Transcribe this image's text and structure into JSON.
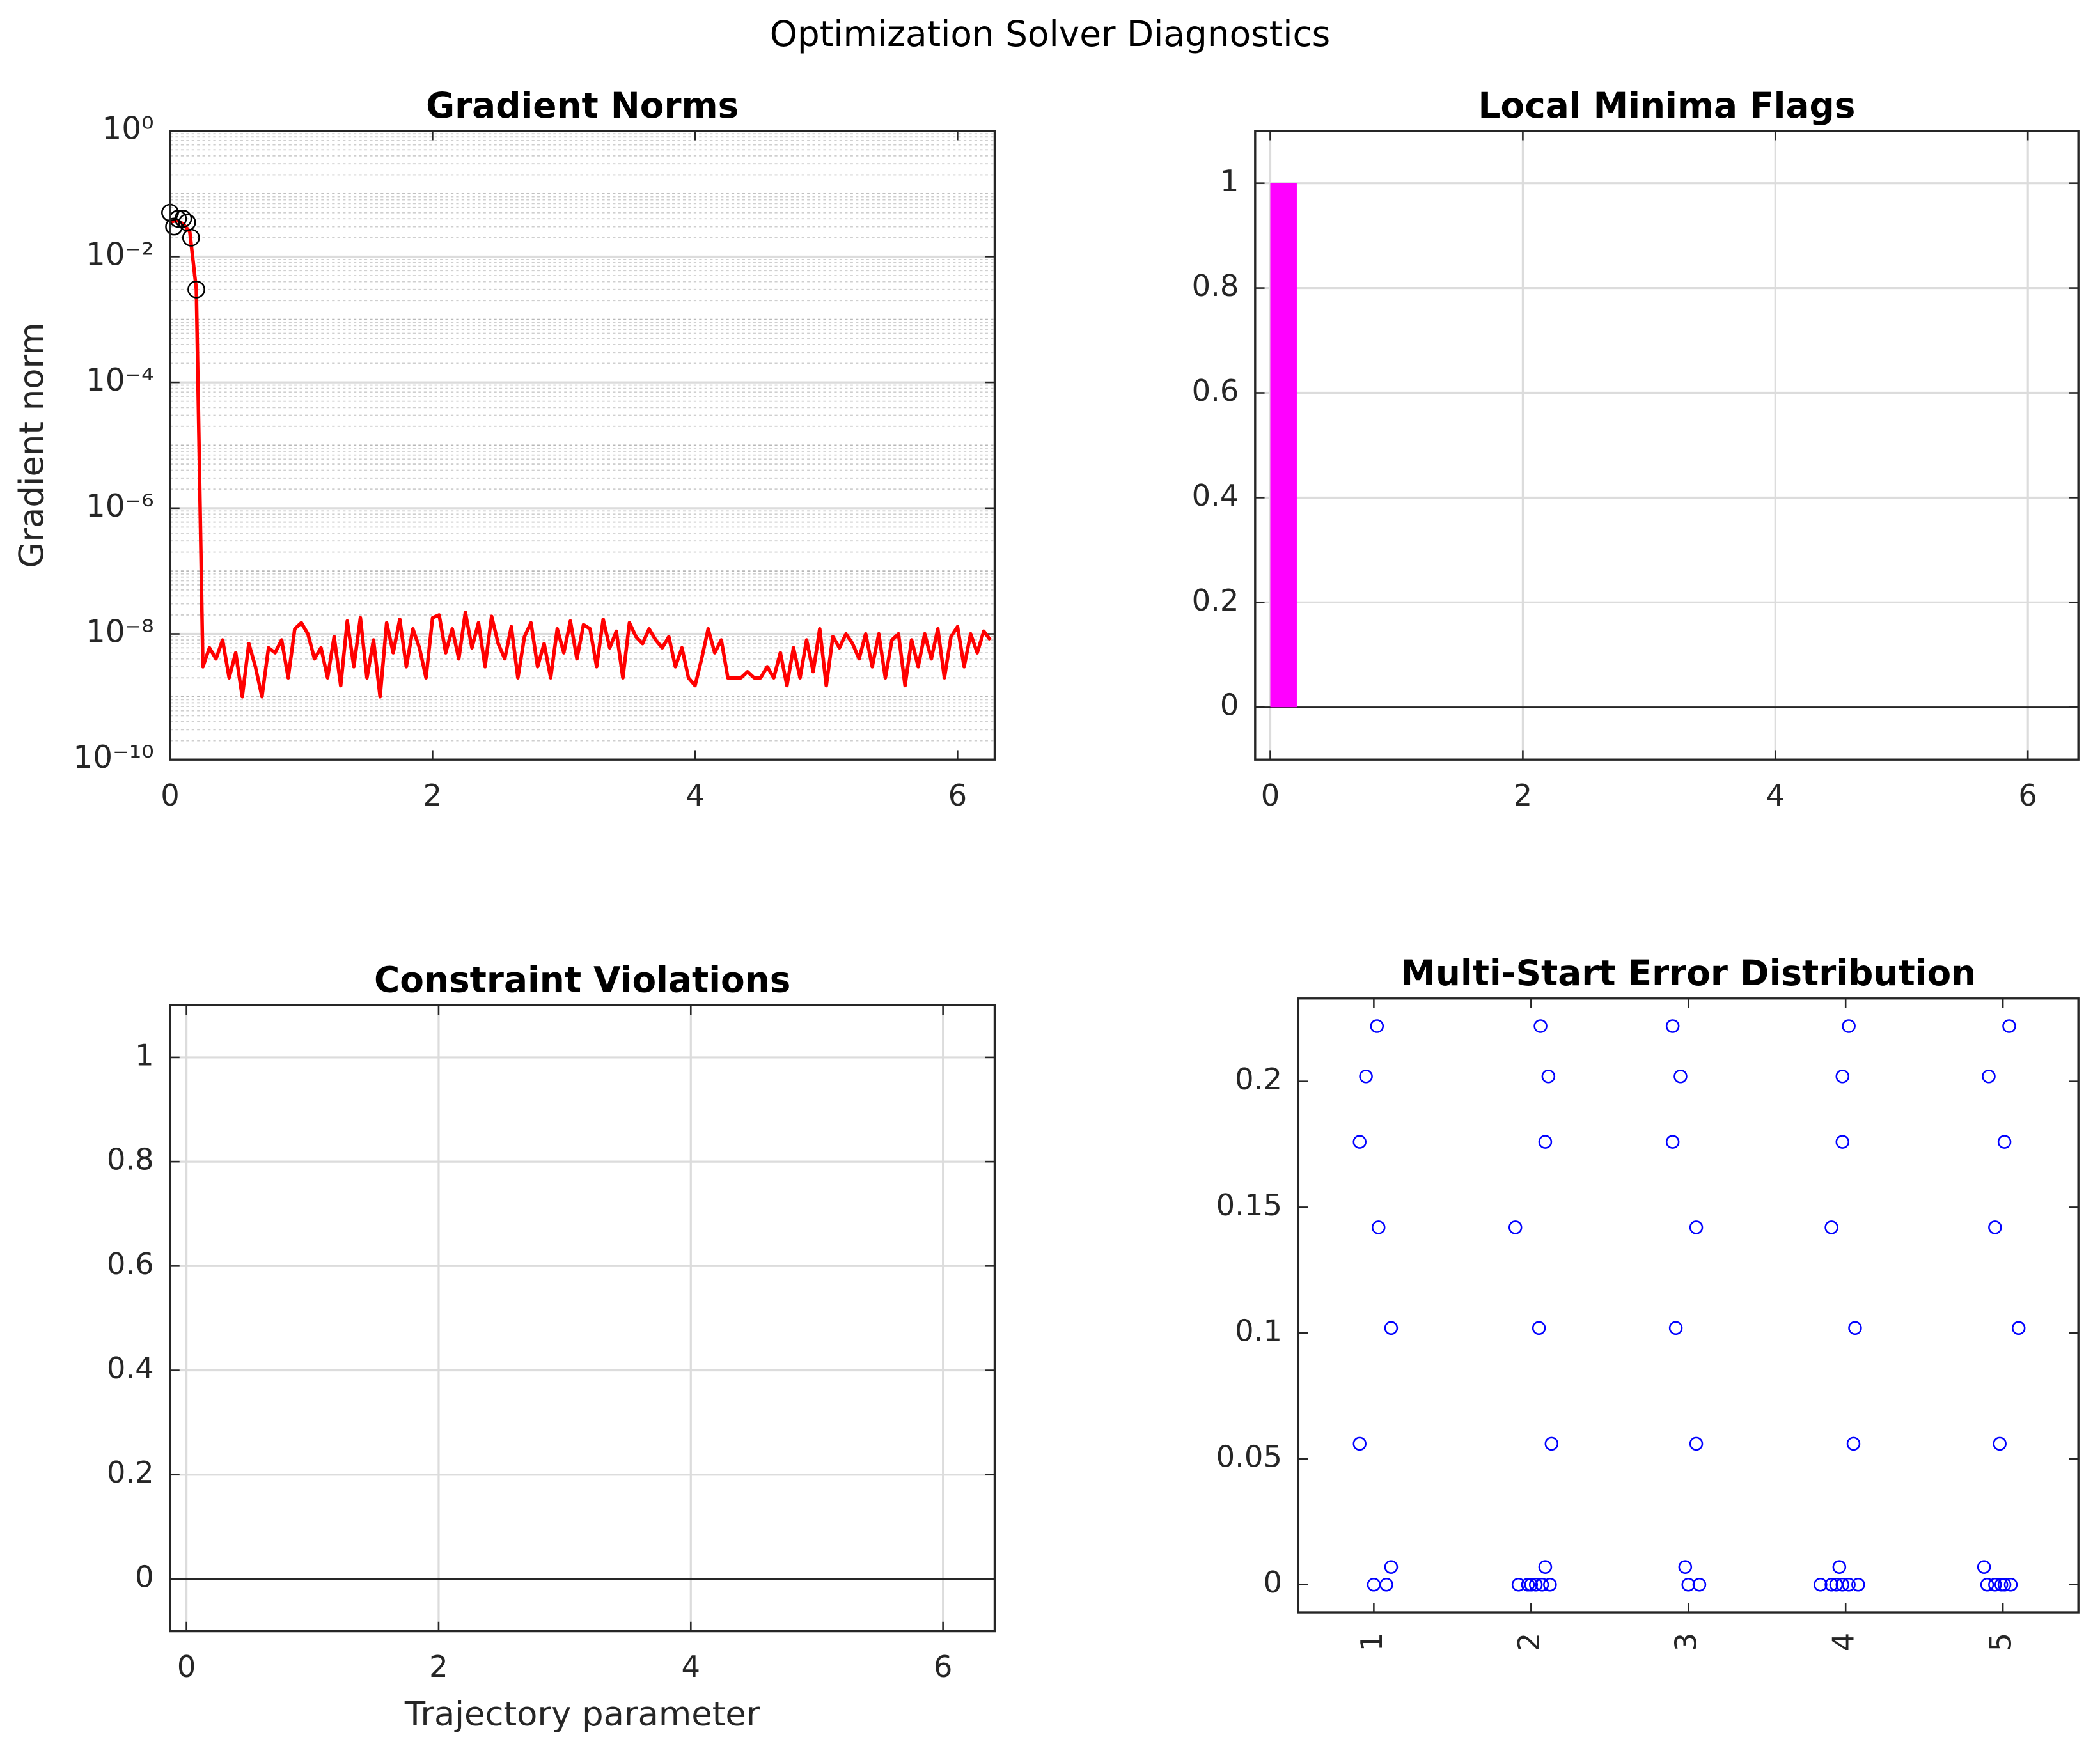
{
  "title": "Optimization Solver Diagnostics",
  "chart_data": [
    {
      "type": "line",
      "title": "Gradient Norms",
      "ylabel": "Gradient norm",
      "xlim": [
        0,
        6.283
      ],
      "xticks": [
        0,
        2,
        4,
        6
      ],
      "log_y": true,
      "ylim": [
        1e-10,
        1
      ],
      "yticks": [
        {
          "value": 1e-10,
          "label": "10⁻¹⁰"
        },
        {
          "value": 1e-08,
          "label": "10⁻⁸"
        },
        {
          "value": 1e-06,
          "label": "10⁻⁶"
        },
        {
          "value": 0.0001,
          "label": "10⁻⁴"
        },
        {
          "value": 0.01,
          "label": "10⁻²"
        },
        {
          "value": 1,
          "label": "10⁰"
        }
      ],
      "grid": "y",
      "minor_grid": true,
      "series": [
        {
          "color": "#ff0000",
          "style": "line",
          "x": [
            0,
            0.05,
            0.1,
            0.15,
            0.2,
            0.25,
            0.3,
            0.35,
            0.4,
            0.45,
            0.5,
            0.55,
            0.6,
            0.65,
            0.7,
            0.75,
            0.8,
            0.85,
            0.9,
            0.95,
            1,
            1.05,
            1.1,
            1.15,
            1.2,
            1.25,
            1.3,
            1.35,
            1.4,
            1.45,
            1.5,
            1.55,
            1.6,
            1.65,
            1.7,
            1.75,
            1.8,
            1.85,
            1.9,
            1.95,
            2,
            2.05,
            2.1,
            2.15,
            2.2,
            2.25,
            2.3,
            2.35,
            2.4,
            2.45,
            2.5,
            2.55,
            2.6,
            2.65,
            2.7,
            2.75,
            2.8,
            2.85,
            2.9,
            2.95,
            3,
            3.05,
            3.1,
            3.15,
            3.2,
            3.25,
            3.3,
            3.35,
            3.4,
            3.45,
            3.5,
            3.55,
            3.6,
            3.65,
            3.7,
            3.75,
            3.8,
            3.85,
            3.9,
            3.95,
            4,
            4.05,
            4.1,
            4.15,
            4.2,
            4.25,
            4.3,
            4.35,
            4.4,
            4.45,
            4.5,
            4.55,
            4.6,
            4.65,
            4.7,
            4.75,
            4.8,
            4.85,
            4.9,
            4.95,
            5,
            5.05,
            5.1,
            5.15,
            5.2,
            5.25,
            5.3,
            5.35,
            5.4,
            5.45,
            5.5,
            5.55,
            5.6,
            5.65,
            5.7,
            5.75,
            5.8,
            5.85,
            5.9,
            5.95,
            6,
            6.05,
            6.1,
            6.15,
            6.2,
            6.25
          ],
          "values": [
            0.035,
            0.038,
            0.033,
            0.025,
            0.003,
            3e-09,
            6e-09,
            4e-09,
            8e-09,
            2e-09,
            5e-09,
            1e-09,
            7e-09,
            3e-09,
            1e-09,
            6e-09,
            5e-09,
            8e-09,
            2e-09,
            1.2e-08,
            1.5e-08,
            1e-08,
            4e-09,
            6e-09,
            2e-09,
            9e-09,
            1.5e-09,
            1.6e-08,
            3e-09,
            1.8e-08,
            2e-09,
            8e-09,
            1e-09,
            1.5e-08,
            5e-09,
            1.7e-08,
            3e-09,
            1.2e-08,
            6e-09,
            2e-09,
            1.8e-08,
            2e-08,
            5e-09,
            1.2e-08,
            4e-09,
            2.2e-08,
            6e-09,
            1.5e-08,
            3e-09,
            1.9e-08,
            7e-09,
            4e-09,
            1.3e-08,
            2e-09,
            9e-09,
            1.5e-08,
            3e-09,
            7e-09,
            2e-09,
            1.2e-08,
            5e-09,
            1.6e-08,
            4e-09,
            1.4e-08,
            1.2e-08,
            3e-09,
            1.7e-08,
            6e-09,
            1.1e-08,
            2e-09,
            1.5e-08,
            9e-09,
            7e-09,
            1.2e-08,
            8e-09,
            6e-09,
            9e-09,
            3e-09,
            6e-09,
            2e-09,
            1.5e-09,
            4e-09,
            1.2e-08,
            5e-09,
            8e-09,
            2e-09,
            2e-09,
            2e-09,
            2.5e-09,
            2e-09,
            2e-09,
            3e-09,
            2e-09,
            5e-09,
            1.5e-09,
            6e-09,
            2e-09,
            8e-09,
            2.5e-09,
            1.2e-08,
            1.5e-09,
            9e-09,
            6e-09,
            1e-08,
            7e-09,
            4e-09,
            1e-08,
            3e-09,
            1e-08,
            2e-09,
            8e-09,
            1e-08,
            1.5e-09,
            8e-09,
            3e-09,
            1e-08,
            4e-09,
            1.2e-08,
            2e-09,
            9e-09,
            1.3e-08,
            3e-09,
            1e-08,
            5e-09,
            1.1e-08,
            8e-09
          ]
        },
        {
          "color": "#000000",
          "style": "marker",
          "x": [
            0,
            0.03,
            0.06,
            0.1,
            0.13,
            0.16,
            0.2
          ],
          "values": [
            0.05,
            0.03,
            0.04,
            0.04,
            0.035,
            0.02,
            0.003
          ]
        }
      ]
    },
    {
      "type": "bar",
      "title": "Local Minima Flags",
      "xlim": [
        -0.12,
        6.4
      ],
      "xticks": [
        0,
        2,
        4,
        6
      ],
      "ylim": [
        -0.1,
        1.1
      ],
      "yticks": [
        0,
        0.2,
        0.4,
        0.6,
        0.8,
        1
      ],
      "grid": "both",
      "zero_line": true,
      "color": "#ff00ff",
      "bar_width": 0.21,
      "x": [
        0.105
      ],
      "values": [
        1
      ]
    },
    {
      "type": "line",
      "title": "Constraint Violations",
      "xlabel": "Trajectory parameter",
      "xlim": [
        -0.13,
        6.41
      ],
      "xticks": [
        0,
        2,
        4,
        6
      ],
      "ylim": [
        -0.1,
        1.1
      ],
      "yticks": [
        0,
        0.2,
        0.4,
        0.6,
        0.8,
        1
      ],
      "grid": "both",
      "zero_line": true,
      "series": []
    },
    {
      "type": "scatter",
      "title": "Multi-Start Error Distribution",
      "xlim": [
        0.52,
        5.48
      ],
      "xticks": [
        1,
        2,
        3,
        4,
        5
      ],
      "xtick_rotation": 90,
      "ylim": [
        -0.011,
        0.233
      ],
      "yticks": [
        0,
        0.05,
        0.1,
        0.15,
        0.2
      ],
      "grid": "none",
      "series": [
        {
          "color": "#0000ff",
          "style": "marker",
          "x": [
            1.02,
            0.95,
            0.91,
            1.03,
            1.11,
            0.91,
            1.11,
            1.0,
            1.08,
            2.06,
            2.11,
            2.09,
            1.9,
            2.05,
            2.13,
            2.09,
            1.92,
            1.98,
            2.0,
            2.03,
            2.07,
            2.12,
            2.9,
            2.95,
            2.9,
            3.05,
            2.92,
            3.05,
            2.98,
            3.0,
            3.07,
            4.02,
            3.98,
            3.98,
            3.91,
            4.06,
            4.05,
            3.96,
            3.84,
            3.91,
            3.94,
            3.98,
            4.02,
            4.08,
            5.04,
            4.91,
            5.01,
            4.95,
            5.1,
            4.98,
            4.88,
            4.9,
            4.95,
            4.99,
            5.01,
            5.05
          ],
          "values": [
            0.222,
            0.202,
            0.176,
            0.142,
            0.102,
            0.056,
            0.007,
            0,
            0,
            0.222,
            0.202,
            0.176,
            0.142,
            0.102,
            0.056,
            0.007,
            0,
            0,
            0,
            0,
            0,
            0,
            0.222,
            0.202,
            0.176,
            0.142,
            0.102,
            0.056,
            0.007,
            0,
            0,
            0.222,
            0.202,
            0.176,
            0.142,
            0.102,
            0.056,
            0.007,
            0,
            0,
            0,
            0,
            0,
            0,
            0.222,
            0.202,
            0.176,
            0.142,
            0.102,
            0.056,
            0.007,
            0,
            0,
            0,
            0,
            0
          ]
        }
      ]
    }
  ]
}
